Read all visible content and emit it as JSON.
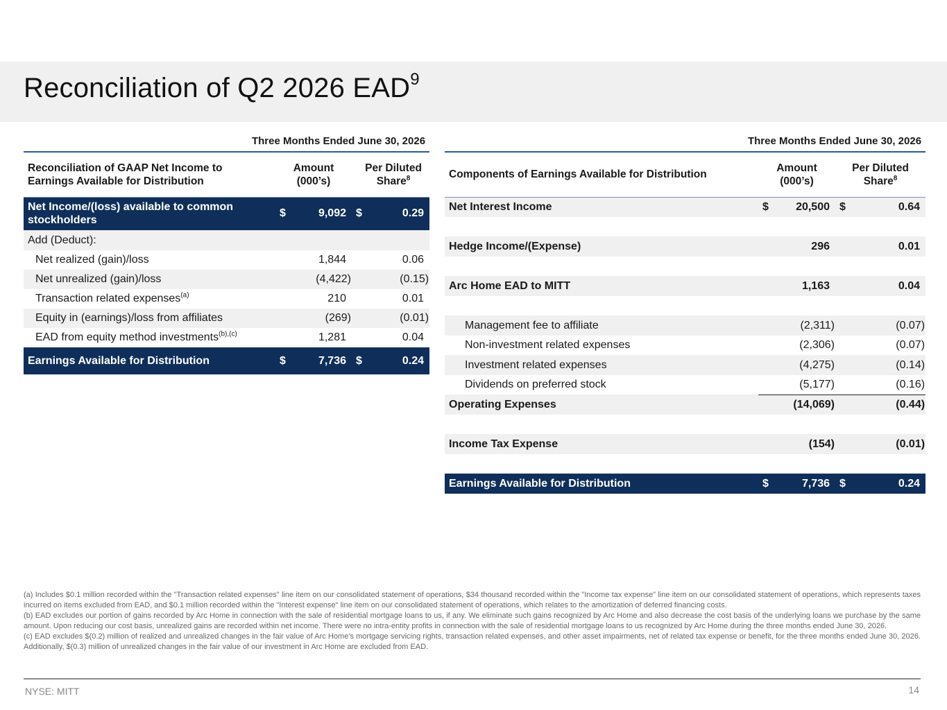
{
  "title": {
    "text": "Reconciliation of Q2 2026 EAD",
    "sup": "9"
  },
  "left": {
    "period": "Three Months Ended June 30, 2026",
    "headers": {
      "label": "Reconciliation of GAAP Net Income to Earnings Available for Distribution",
      "amount": "Amount (000’s)",
      "per_share": "Per Diluted Share",
      "per_share_sup": "8"
    },
    "rows": [
      {
        "label": "Net Income/(loss) available to common stockholders",
        "d1": "$",
        "amount": "9,092",
        "d2": "$",
        "per_share": "0.29"
      },
      {
        "label": "Add (Deduct):"
      },
      {
        "label": "Net realized (gain)/loss",
        "amount": "1,844",
        "per_share": "0.06"
      },
      {
        "label": "Net unrealized (gain)/loss",
        "amount": "(4,422)",
        "per_share": "(0.15)"
      },
      {
        "label": "Transaction related expenses",
        "sup": "(a)",
        "amount": "210",
        "per_share": "0.01"
      },
      {
        "label": "Equity in (earnings)/loss from affiliates",
        "amount": "(269)",
        "per_share": "(0.01)"
      },
      {
        "label": "EAD from equity method investments",
        "sup": "(b),(c)",
        "amount": "1,281",
        "per_share": "0.04"
      },
      {
        "label": "Earnings Available for Distribution",
        "d1": "$",
        "amount": "7,736",
        "d2": "$",
        "per_share": "0.24"
      }
    ]
  },
  "right": {
    "period": "Three Months Ended June 30, 2026",
    "headers": {
      "label": "Components of Earnings Available for Distribution",
      "amount": "Amount (000’s)",
      "per_share": "Per Diluted Share",
      "per_share_sup": "8"
    },
    "rows": [
      {
        "label": "Net Interest Income",
        "d1": "$",
        "amount": "20,500",
        "d2": "$",
        "per_share": "0.64"
      },
      {
        "label": "Hedge Income/(Expense)",
        "amount": "296",
        "per_share": "0.01"
      },
      {
        "label": "Arc Home EAD to MITT",
        "amount": "1,163",
        "per_share": "0.04"
      },
      {
        "label": "Management fee to affiliate",
        "amount": "(2,311)",
        "per_share": "(0.07)"
      },
      {
        "label": "Non-investment related expenses",
        "amount": "(2,306)",
        "per_share": "(0.07)"
      },
      {
        "label": "Investment related expenses",
        "amount": "(4,275)",
        "per_share": "(0.14)"
      },
      {
        "label": "Dividends on preferred stock",
        "amount": "(5,177)",
        "per_share": "(0.16)"
      },
      {
        "label": "Operating Expenses",
        "amount": "(14,069)",
        "per_share": "(0.44)"
      },
      {
        "label": "Income Tax Expense",
        "amount": "(154)",
        "per_share": "(0.01)"
      },
      {
        "label": "Earnings Available for Distribution",
        "d1": "$",
        "amount": "7,736",
        "d2": "$",
        "per_share": "0.24"
      }
    ]
  },
  "footnotes": [
    "(a) Includes $0.1 million recorded within the \"Transaction related expenses\" line item on our consolidated statement of operations, $34 thousand recorded within the \"Income tax expense\" line item on our consolidated statement of operations, which represents taxes incurred on items excluded from EAD, and $0.1 million recorded within the \"Interest expense\" line item on our consolidated statement of operations, which relates to the amortization of deferred financing costs.",
    "(b) EAD excludes our portion of gains recorded by Arc Home in connection with the sale of residential mortgage loans to us, if any. We eliminate such gains recognized by Arc Home and also decrease the cost basis of the underlying loans we purchase by the same amount. Upon reducing our cost basis, unrealized gains are recorded within net income. There were no intra-entity profits in connection with the sale of residential mortgage loans to us recognized by Arc Home during the three months ended June 30, 2026.",
    "(c) EAD excludes $(0.2) million of realized and unrealized changes in the fair value of Arc Home's mortgage servicing rights, transaction related expenses, and other asset impairments, net of related tax expense or benefit, for the three months ended June 30, 2026. Additionally, $(0.3) million of unrealized changes in the fair value of our investment in Arc Home are excluded from EAD."
  ],
  "footer": {
    "ticker": "NYSE: MITT",
    "page": "14"
  }
}
